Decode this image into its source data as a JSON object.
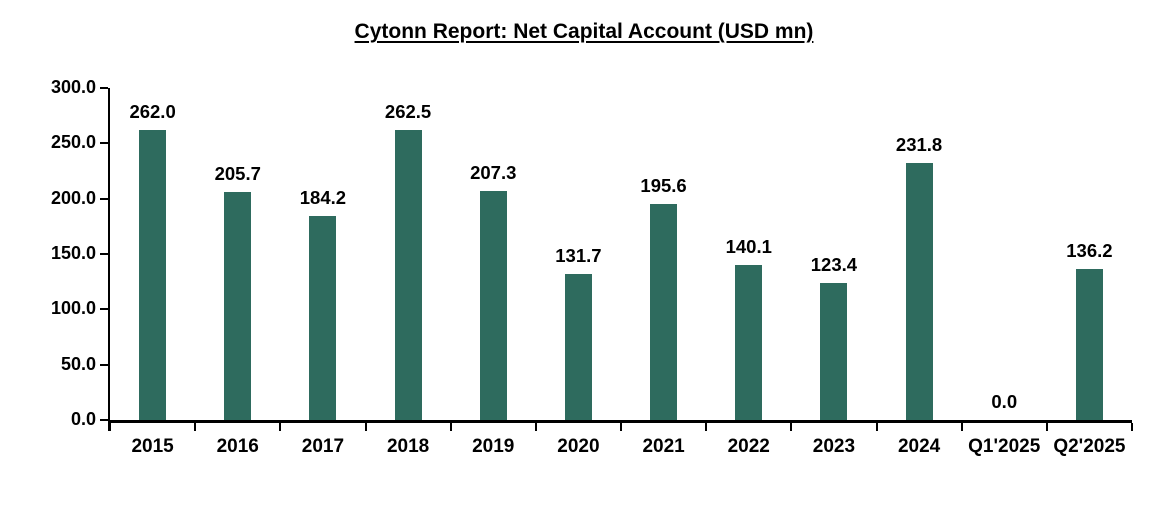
{
  "chart_data": {
    "type": "bar",
    "title": "Cytonn Report: Net Capital Account (USD mn)",
    "categories": [
      "2015",
      "2016",
      "2017",
      "2018",
      "2019",
      "2020",
      "2021",
      "2022",
      "2023",
      "2024",
      "Q1'2025",
      "Q2'2025"
    ],
    "values": [
      262.0,
      205.7,
      184.2,
      262.5,
      207.3,
      131.7,
      195.6,
      140.1,
      123.4,
      231.8,
      0.0,
      136.2
    ],
    "value_labels": [
      "262.0",
      "205.7",
      "184.2",
      "262.5",
      "207.3",
      "131.7",
      "195.6",
      "140.1",
      "123.4",
      "231.8",
      "0.0",
      "136.2"
    ],
    "xlabel": "",
    "ylabel": "",
    "ylim": [
      0,
      300
    ],
    "ytick_step": 50,
    "ytick_labels": [
      "0.0",
      "50.0",
      "100.0",
      "150.0",
      "200.0",
      "250.0",
      "300.0"
    ],
    "grid": false,
    "legend": "none",
    "bar_color": "#2E6B5E",
    "axis_color": "#000000",
    "text_color": "#000000",
    "background_color": "#FFFFFF"
  }
}
